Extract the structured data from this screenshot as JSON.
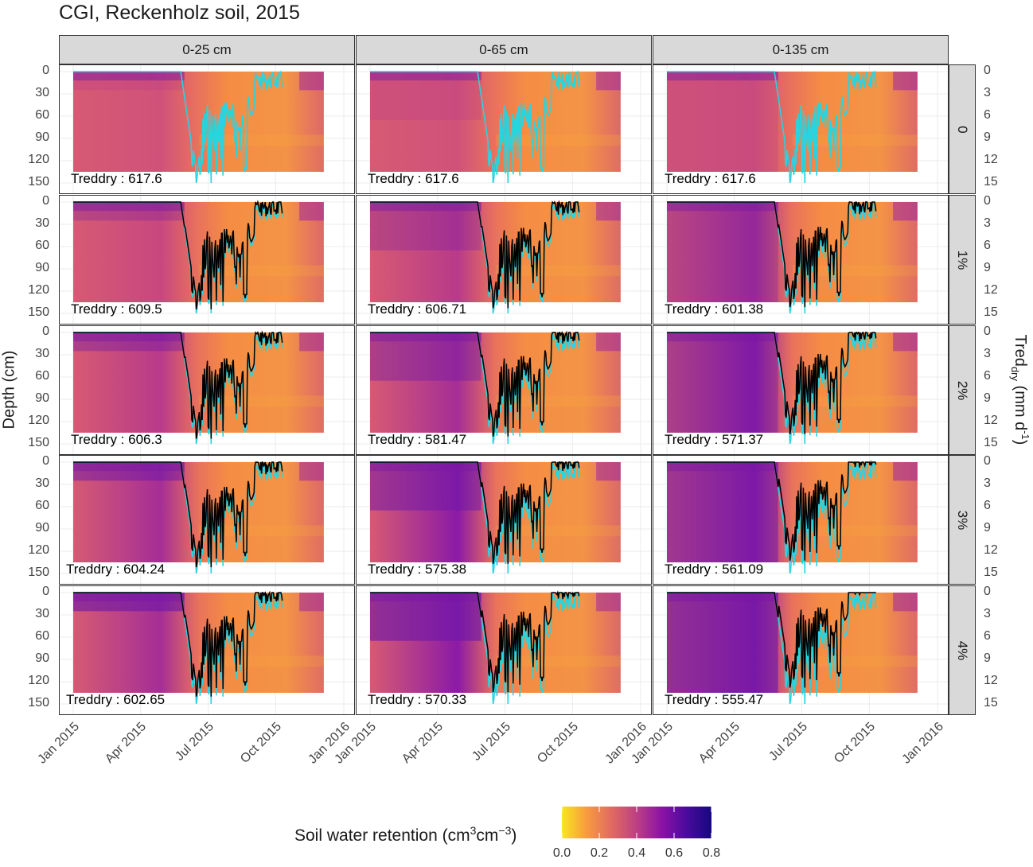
{
  "chart_data": {
    "type": "heatmap",
    "title": "CGI, Reckenholz soil, 2015",
    "ylabel_left": "Depth (cm)",
    "ylabel_right": {
      "main": "Tred",
      "sub": "dry",
      "unit_open": " (mm d",
      "unit_sup": "-1",
      "unit_close": ")"
    },
    "columns": [
      "0-25 cm",
      "0-65 cm",
      "0-135 cm"
    ],
    "rows": [
      "0",
      "1%",
      "2%",
      "3%",
      "4%"
    ],
    "x_ticks": [
      "Jan 2015",
      "Apr 2015",
      "Jul 2015",
      "Oct 2015",
      "Jan 2016"
    ],
    "y_ticks_left": [
      0,
      30,
      60,
      90,
      120,
      150
    ],
    "y_ticks_right": [
      0,
      3,
      6,
      9,
      12,
      15
    ],
    "depth_range": [
      0,
      135
    ],
    "treddry_range": [
      0,
      15
    ],
    "annotation_label": "Treddry",
    "annotations": [
      [
        "617.6",
        "617.6",
        "617.6"
      ],
      [
        "609.5",
        "606.71",
        "601.38"
      ],
      [
        "606.3",
        "581.47",
        "571.37"
      ],
      [
        "604.24",
        "575.38",
        "561.09"
      ],
      [
        "602.65",
        "570.33",
        "555.47"
      ]
    ],
    "line_colors": {
      "reference": "#27d4e0",
      "treatment": "#000000"
    },
    "legend": {
      "title": "Soil water retention (cm",
      "title_sup1": "3",
      "title_mid": "cm",
      "title_sup2": "−3",
      "title_close": ")",
      "ticks": [
        "0.0",
        "0.2",
        "0.4",
        "0.6",
        "0.8"
      ],
      "range": [
        0,
        0.8
      ],
      "colors": [
        "#f8e61f",
        "#f89a40",
        "#e06a62",
        "#bc4083",
        "#8c12a6",
        "#4b0a9e",
        "#16087f"
      ]
    },
    "grid": true,
    "legend_position": "bottom"
  }
}
